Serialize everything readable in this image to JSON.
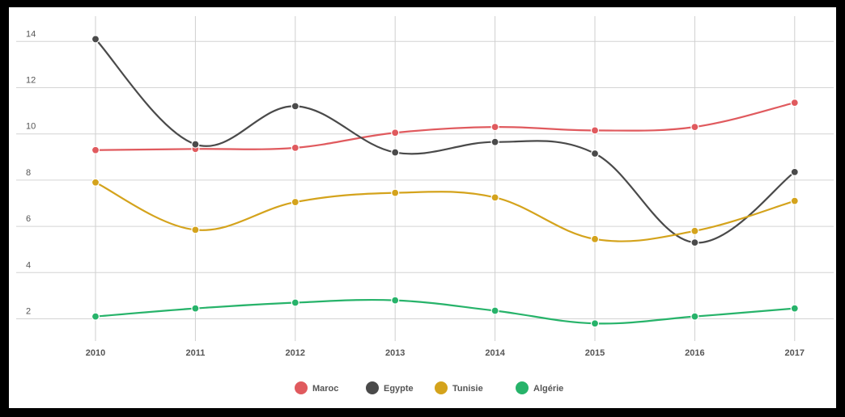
{
  "chart_data": {
    "type": "line",
    "x": [
      "2010",
      "2011",
      "2012",
      "2013",
      "2014",
      "2015",
      "2016",
      "2017"
    ],
    "series": [
      {
        "name": "Maroc",
        "color": "#e05a5e",
        "values": [
          9.3,
          9.35,
          9.4,
          10.05,
          10.3,
          10.15,
          10.3,
          11.35
        ]
      },
      {
        "name": "Egypte",
        "color": "#4a4a4a",
        "values": [
          14.1,
          9.55,
          11.2,
          9.2,
          9.65,
          9.15,
          5.3,
          8.35
        ]
      },
      {
        "name": "Tunisie",
        "color": "#d4a31c",
        "values": [
          7.9,
          5.85,
          7.05,
          7.45,
          7.25,
          5.45,
          5.8,
          7.1
        ]
      },
      {
        "name": "Algérie",
        "color": "#27b36a",
        "values": [
          2.1,
          2.45,
          2.7,
          2.8,
          2.35,
          1.8,
          2.1,
          2.45
        ]
      }
    ],
    "y_ticks": [
      "2",
      "4",
      "6",
      "8",
      "10",
      "12",
      "14"
    ],
    "ylim": [
      1,
      15
    ],
    "grid": true,
    "legend_position": "bottom-center",
    "title": "",
    "xlabel": "",
    "ylabel": ""
  }
}
